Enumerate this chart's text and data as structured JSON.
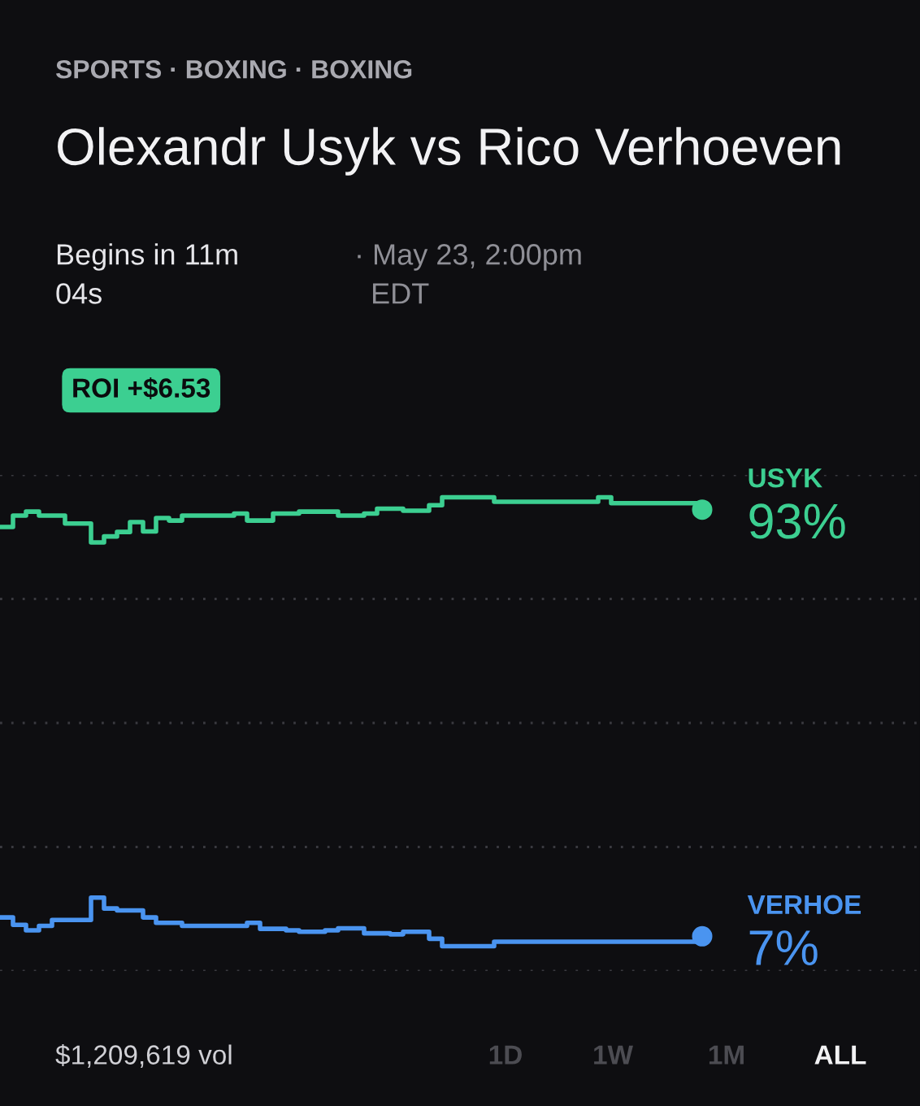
{
  "chart_data": {
    "type": "step",
    "subtitle": "SPORTS · BOXING · BOXING",
    "title": "Olexandr Usyk vs Rico Verhoeven",
    "annotations": [
      "Begins in 11m\n04s",
      "· May 23, 2:00pm\n  EDT",
      "ROI +$6.53",
      "$1,209,619 vol",
      "1D",
      "1W",
      "1M",
      "ALL"
    ],
    "categories": [
      null,
      null,
      null,
      null,
      null,
      null,
      null,
      null,
      null,
      null,
      null,
      null,
      null,
      null,
      null,
      null,
      null,
      null,
      null,
      null,
      null,
      null,
      null,
      null,
      null,
      null,
      null,
      null,
      null,
      null,
      null,
      null,
      null,
      null,
      null,
      null,
      null,
      null,
      null,
      null,
      null,
      null,
      null,
      null,
      null,
      null,
      null,
      null,
      null,
      null,
      null,
      null,
      null,
      null,
      null
    ],
    "ylim": [
      0,
      100
    ],
    "yticks": [
      {
        "value": 0,
        "label": null
      },
      {
        "value": 25,
        "label": null
      },
      {
        "value": 50,
        "label": null
      },
      {
        "value": 75,
        "label": null
      },
      {
        "value": 100,
        "label": null
      }
    ],
    "grid": "y",
    "legend": false,
    "line_style": "solid",
    "series": [
      {
        "name": "USYK",
        "color": "#3ccf91",
        "values": [
          89.5,
          91.8,
          92.6,
          91.8,
          91.8,
          90.2,
          90.2,
          86.4,
          87.6,
          88.5,
          90.5,
          88.6,
          91.3,
          90.8,
          91.8,
          91.8,
          91.8,
          91.8,
          92.2,
          90.8,
          90.8,
          92.2,
          92.2,
          92.6,
          92.6,
          92.6,
          91.8,
          91.8,
          92.2,
          93.2,
          93.2,
          92.8,
          92.8,
          93.9,
          95.5,
          95.5,
          95.5,
          95.5,
          94.6,
          94.6,
          94.6,
          94.6,
          94.6,
          94.6,
          94.6,
          94.6,
          95.5,
          94.3,
          94.3,
          94.3,
          94.3,
          94.3,
          94.3,
          94.3,
          93
        ],
        "value_labels": [
          null,
          null,
          null,
          null,
          null,
          null,
          null,
          null,
          null,
          null,
          null,
          null,
          null,
          null,
          null,
          null,
          null,
          null,
          null,
          null,
          null,
          null,
          null,
          null,
          null,
          null,
          null,
          null,
          null,
          null,
          null,
          null,
          null,
          null,
          null,
          null,
          null,
          null,
          null,
          null,
          null,
          null,
          null,
          null,
          null,
          null,
          null,
          null,
          null,
          null,
          null,
          null,
          null,
          null,
          "93%"
        ]
      },
      {
        "name": "VERHOE",
        "color": "#4a94f0",
        "values": [
          10.8,
          9.3,
          8.2,
          9.1,
          10.3,
          10.3,
          10.3,
          14.8,
          12.6,
          12.2,
          12.2,
          10.8,
          9.7,
          9.7,
          9.1,
          9.1,
          9.1,
          9.1,
          9.1,
          9.7,
          8.5,
          8.5,
          8.2,
          7.9,
          7.9,
          8.2,
          8.6,
          8.6,
          7.6,
          7.6,
          7.4,
          7.9,
          7.9,
          6.5,
          5.0,
          5.0,
          5.0,
          5.0,
          5.9,
          5.9,
          5.9,
          5.9,
          5.9,
          5.9,
          5.9,
          5.9,
          5.9,
          5.9,
          5.9,
          5.9,
          5.9,
          5.9,
          5.9,
          5.9,
          7
        ],
        "value_labels": [
          null,
          null,
          null,
          null,
          null,
          null,
          null,
          null,
          null,
          null,
          null,
          null,
          null,
          null,
          null,
          null,
          null,
          null,
          null,
          null,
          null,
          null,
          null,
          null,
          null,
          null,
          null,
          null,
          null,
          null,
          null,
          null,
          null,
          null,
          null,
          null,
          null,
          null,
          null,
          null,
          null,
          null,
          null,
          null,
          null,
          null,
          null,
          null,
          null,
          null,
          null,
          null,
          null,
          null,
          "7%"
        ]
      }
    ]
  }
}
